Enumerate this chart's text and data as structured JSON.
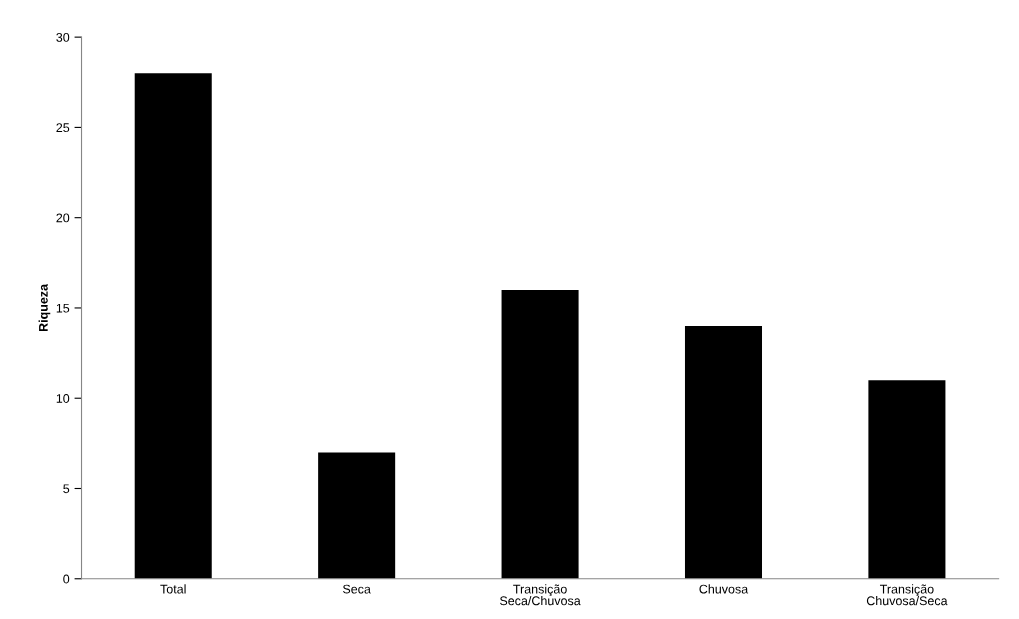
{
  "chart_data": {
    "type": "bar",
    "ylabel": "Riqueza",
    "categories": [
      "Total",
      "Seca",
      "Transição\nSeca/Chuvosa",
      "Chuvosa",
      "Transição\nChuvosa/Seca"
    ],
    "values": [
      28,
      7,
      16,
      14,
      11
    ],
    "color": "#000000",
    "ylim": [
      0,
      30
    ],
    "yticks": [
      0,
      5,
      10,
      15,
      20,
      25,
      30
    ],
    "grid": false,
    "legend": false
  }
}
